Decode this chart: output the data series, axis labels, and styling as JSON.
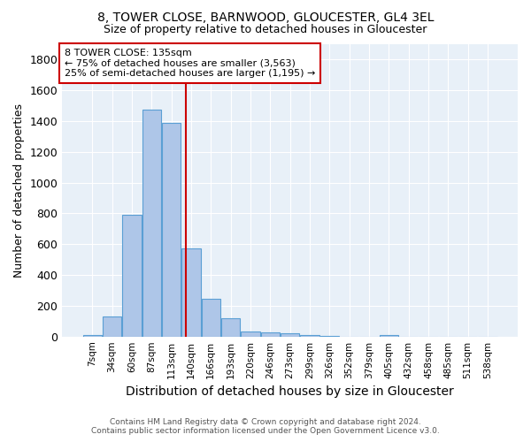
{
  "title1": "8, TOWER CLOSE, BARNWOOD, GLOUCESTER, GL4 3EL",
  "title2": "Size of property relative to detached houses in Gloucester",
  "xlabel": "Distribution of detached houses by size in Gloucester",
  "ylabel": "Number of detached properties",
  "bins": [
    "7sqm",
    "34sqm",
    "60sqm",
    "87sqm",
    "113sqm",
    "140sqm",
    "166sqm",
    "193sqm",
    "220sqm",
    "246sqm",
    "273sqm",
    "299sqm",
    "326sqm",
    "352sqm",
    "379sqm",
    "405sqm",
    "432sqm",
    "458sqm",
    "485sqm",
    "511sqm",
    "538sqm"
  ],
  "values": [
    10,
    130,
    790,
    1475,
    1390,
    575,
    245,
    120,
    35,
    25,
    20,
    10,
    5,
    0,
    0,
    10,
    0,
    0,
    0,
    0,
    0
  ],
  "bar_color": "#aec6e8",
  "bar_edge_color": "#5a9fd4",
  "vline_color": "#cc0000",
  "annotation_text": "8 TOWER CLOSE: 135sqm\n← 75% of detached houses are smaller (3,563)\n25% of semi-detached houses are larger (1,195) →",
  "annotation_box_color": "#ffffff",
  "annotation_box_edge_color": "#cc0000",
  "ylim": [
    0,
    1900
  ],
  "yticks": [
    0,
    200,
    400,
    600,
    800,
    1000,
    1200,
    1400,
    1600,
    1800
  ],
  "background_color": "#e8f0f8",
  "grid_color": "#ffffff",
  "footer1": "Contains HM Land Registry data © Crown copyright and database right 2024.",
  "footer2": "Contains public sector information licensed under the Open Government Licence v3.0."
}
